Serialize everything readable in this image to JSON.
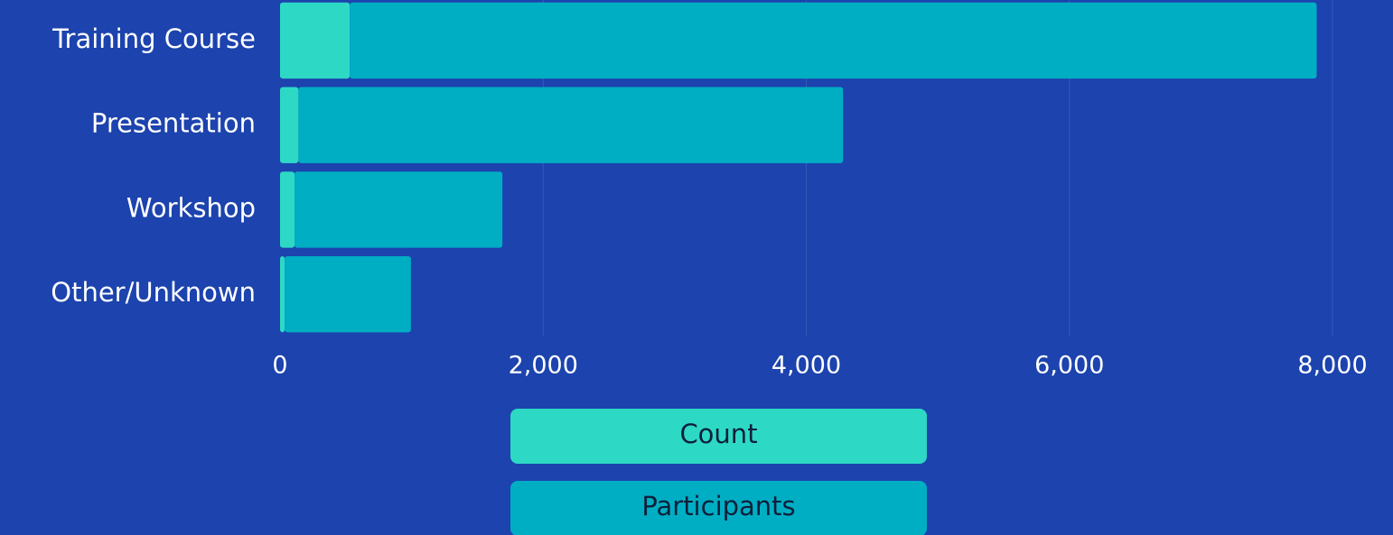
{
  "chart_data": {
    "type": "stacked_barh",
    "categories": [
      "Training Course",
      "Presentation",
      "Workshop",
      "Other/Unknown"
    ],
    "series": [
      {
        "name": "Count",
        "color": "#2dd9c5",
        "values": [
          530,
          140,
          110,
          35
        ]
      },
      {
        "name": "Participants",
        "color": "#00aec4",
        "values": [
          7350,
          4140,
          1580,
          960
        ]
      }
    ],
    "xlim": [
      0,
      8000
    ],
    "xticks": [
      0,
      {
        "value": 2000,
        "label": "2,000"
      },
      {
        "value": 4000,
        "label": "4,000"
      },
      {
        "value": 6000,
        "label": "6,000"
      },
      {
        "value": 8000,
        "label": "8,000"
      }
    ],
    "grid": true,
    "legend": "bottom"
  }
}
